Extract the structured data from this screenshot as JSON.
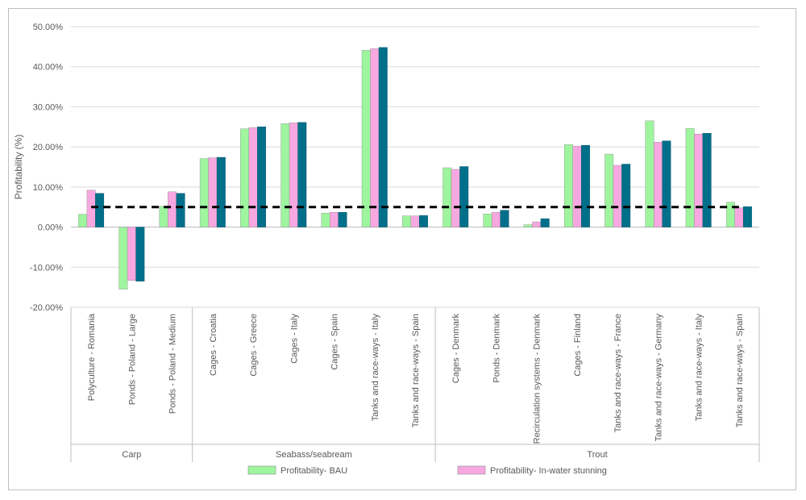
{
  "chart_data": {
    "type": "bar",
    "title": "",
    "xlabel": "",
    "ylabel": "Profitability (%)",
    "ylim": [
      -20,
      50
    ],
    "yticks": [
      -20,
      -10,
      0,
      10,
      20,
      30,
      40,
      50
    ],
    "ytick_labels": [
      "-20.00%",
      "-10.00%",
      "0.00%",
      "10.00%",
      "20.00%",
      "30.00%",
      "40.00%",
      "50.00%"
    ],
    "grid": true,
    "legend_position": "bottom",
    "reference_line": {
      "value": 5,
      "style": "dashed",
      "color": "#000000"
    },
    "groups": [
      {
        "label": "Carp",
        "count": 3
      },
      {
        "label": "Seabass/seabream",
        "count": 6
      },
      {
        "label": "Trout",
        "count": 8
      }
    ],
    "categories": [
      "Polyculture - Romania",
      "Ponds - Poland - Large",
      "Ponds - Poland - Medium",
      "Cages - Croatia",
      "Cages - Greece",
      "Cages - Italy",
      "Cages - Spain",
      "Tanks and race-ways - Italy",
      "Tanks and race-ways - Spain",
      "Cages - Denmark",
      "Ponds - Denmark",
      "Recirculation systems - Denmark",
      "Cages - Finland",
      "Tanks and race-ways - France",
      "Tanks and race-ways - Germany",
      "Tanks and race-ways - Italy",
      "Tanks and race-ways - Spain"
    ],
    "series": [
      {
        "name": "Profitability- BAU",
        "color": "#9ef59e",
        "values": [
          3.2,
          -15.5,
          5.2,
          17.1,
          24.5,
          25.8,
          3.5,
          44.1,
          2.8,
          14.8,
          3.3,
          0.6,
          20.6,
          18.2,
          26.5,
          24.6,
          6.2
        ]
      },
      {
        "name": "Profitability- In-water stunning",
        "color": "#f7a8e0",
        "values": [
          9.2,
          -13.3,
          8.8,
          17.3,
          24.8,
          26.0,
          3.7,
          44.5,
          2.8,
          14.4,
          3.7,
          1.3,
          20.2,
          15.4,
          21.2,
          23.2,
          4.8
        ]
      },
      {
        "name": "",
        "color": "#006f8a",
        "values": [
          8.4,
          -13.5,
          8.4,
          17.4,
          25.0,
          26.1,
          3.7,
          44.8,
          2.9,
          15.1,
          4.2,
          2.1,
          20.4,
          15.7,
          21.5,
          23.4,
          5.1
        ]
      }
    ]
  }
}
